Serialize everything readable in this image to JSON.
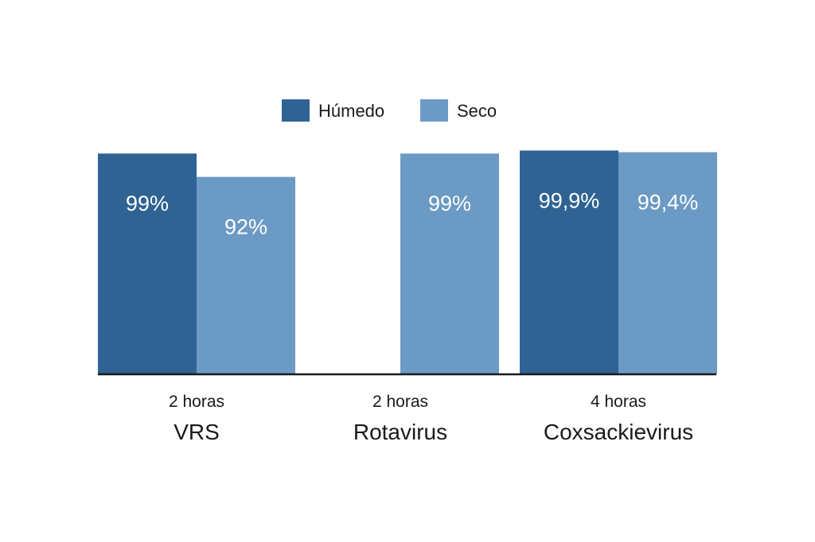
{
  "chart_data": {
    "type": "bar",
    "categories": [
      "VRS",
      "Rotavirus",
      "Coxsackievirus"
    ],
    "category_sublabels": [
      "2 horas",
      "2 horas",
      "4 horas"
    ],
    "series": [
      {
        "name": "Húmedo",
        "color": "#2f6393",
        "values": [
          99,
          null,
          99.9
        ],
        "labels": [
          "99%",
          "",
          "99,9%"
        ]
      },
      {
        "name": "Seco",
        "color": "#6b9ac4",
        "values": [
          92,
          99,
          99.4
        ],
        "labels": [
          "92%",
          "99%",
          "99,4%"
        ]
      }
    ],
    "ylim": [
      0,
      100
    ],
    "grid": false,
    "legend_position": "top-center",
    "title": "",
    "xlabel": "",
    "ylabel": ""
  }
}
